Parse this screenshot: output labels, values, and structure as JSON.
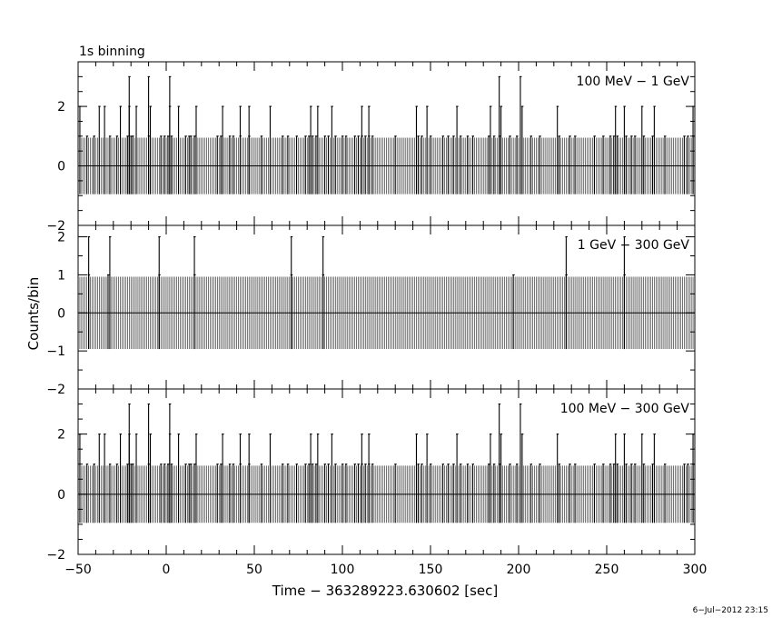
{
  "chart_data": {
    "type": "histogram-lightcurve",
    "binning_label": "1s binning",
    "xlabel": "Time − 363289223.630602 [sec]",
    "ylabel": "Counts/bin",
    "timestamp": "6−Jul−2012 23:15",
    "xlim": [
      -50,
      300
    ],
    "x_ticks": [
      -50,
      0,
      50,
      100,
      150,
      200,
      250,
      300
    ],
    "x_tick_labels": [
      "−50",
      "0",
      "50",
      "100",
      "150",
      "200",
      "250",
      "300"
    ],
    "bin_width": 1,
    "panels": [
      {
        "label": "100 MeV − 1 GeV",
        "ylim": [
          -2,
          3.5
        ],
        "y_ticks": [
          -2,
          0,
          2
        ],
        "y_tick_labels": [
          "−2",
          "0",
          "2"
        ],
        "background_band": [
          -0.95,
          0.95
        ],
        "bins_count_1": [
          -45,
          -41,
          -32,
          -28,
          -22,
          -20,
          -19,
          -10,
          -3,
          -1,
          1,
          3,
          11,
          13,
          14,
          16,
          29,
          31,
          36,
          38,
          42,
          47,
          54,
          66,
          69,
          74,
          79,
          81,
          83,
          85,
          90,
          92,
          96,
          100,
          102,
          107,
          109,
          111,
          113,
          115,
          117,
          130,
          143,
          145,
          150,
          157,
          160,
          163,
          167,
          171,
          174,
          183,
          186,
          189,
          195,
          199,
          207,
          212,
          223,
          229,
          232,
          243,
          248,
          252,
          254,
          256,
          261,
          264,
          266,
          271,
          276,
          283,
          294,
          296,
          299
        ],
        "bins_count_2": [
          -49,
          -38,
          -35,
          -26,
          -21,
          -17,
          -9,
          2,
          7,
          17,
          32,
          42,
          47,
          59,
          82,
          86,
          94,
          111,
          115,
          142,
          148,
          165,
          184,
          190,
          202,
          222,
          255,
          260,
          270,
          277,
          299
        ],
        "bins_count_3": [
          -21,
          -10,
          2,
          189,
          201
        ]
      },
      {
        "label": "1 GeV − 300 GeV",
        "ylim": [
          -2,
          2.3
        ],
        "y_ticks": [
          -2,
          -1,
          0,
          1,
          2
        ],
        "y_tick_labels": [
          "−2",
          "−1",
          "0",
          "1",
          "2"
        ],
        "background_band": [
          -0.95,
          0.95
        ],
        "bins_count_1": [
          -44,
          -33,
          -4,
          16,
          71,
          89,
          197,
          227,
          260
        ],
        "bins_count_2": [
          -44,
          -32,
          -4,
          16,
          71,
          89,
          227,
          260
        ],
        "bins_count_3": []
      },
      {
        "label": "100 MeV − 300 GeV",
        "ylim": [
          -2,
          3.5
        ],
        "y_ticks": [
          -2,
          0,
          2
        ],
        "y_tick_labels": [
          "−2",
          "0",
          "2"
        ],
        "background_band": [
          -0.95,
          0.95
        ],
        "bins_count_1": [
          -45,
          -41,
          -32,
          -28,
          -22,
          -20,
          -19,
          -10,
          -3,
          -1,
          1,
          3,
          11,
          13,
          14,
          16,
          29,
          31,
          36,
          38,
          42,
          47,
          54,
          66,
          69,
          74,
          79,
          81,
          83,
          85,
          90,
          92,
          96,
          100,
          102,
          107,
          109,
          111,
          113,
          115,
          117,
          130,
          143,
          145,
          150,
          157,
          160,
          163,
          167,
          171,
          174,
          183,
          186,
          189,
          195,
          199,
          207,
          212,
          223,
          229,
          232,
          243,
          248,
          252,
          254,
          256,
          261,
          264,
          266,
          271,
          276,
          283,
          294,
          296,
          299
        ],
        "bins_count_2": [
          -49,
          -38,
          -35,
          -26,
          -21,
          -17,
          -9,
          2,
          7,
          17,
          32,
          42,
          47,
          59,
          82,
          86,
          94,
          111,
          115,
          142,
          148,
          165,
          184,
          190,
          202,
          222,
          255,
          260,
          270,
          277,
          299
        ],
        "bins_count_3": [
          -21,
          -10,
          2,
          189,
          201
        ]
      }
    ]
  }
}
